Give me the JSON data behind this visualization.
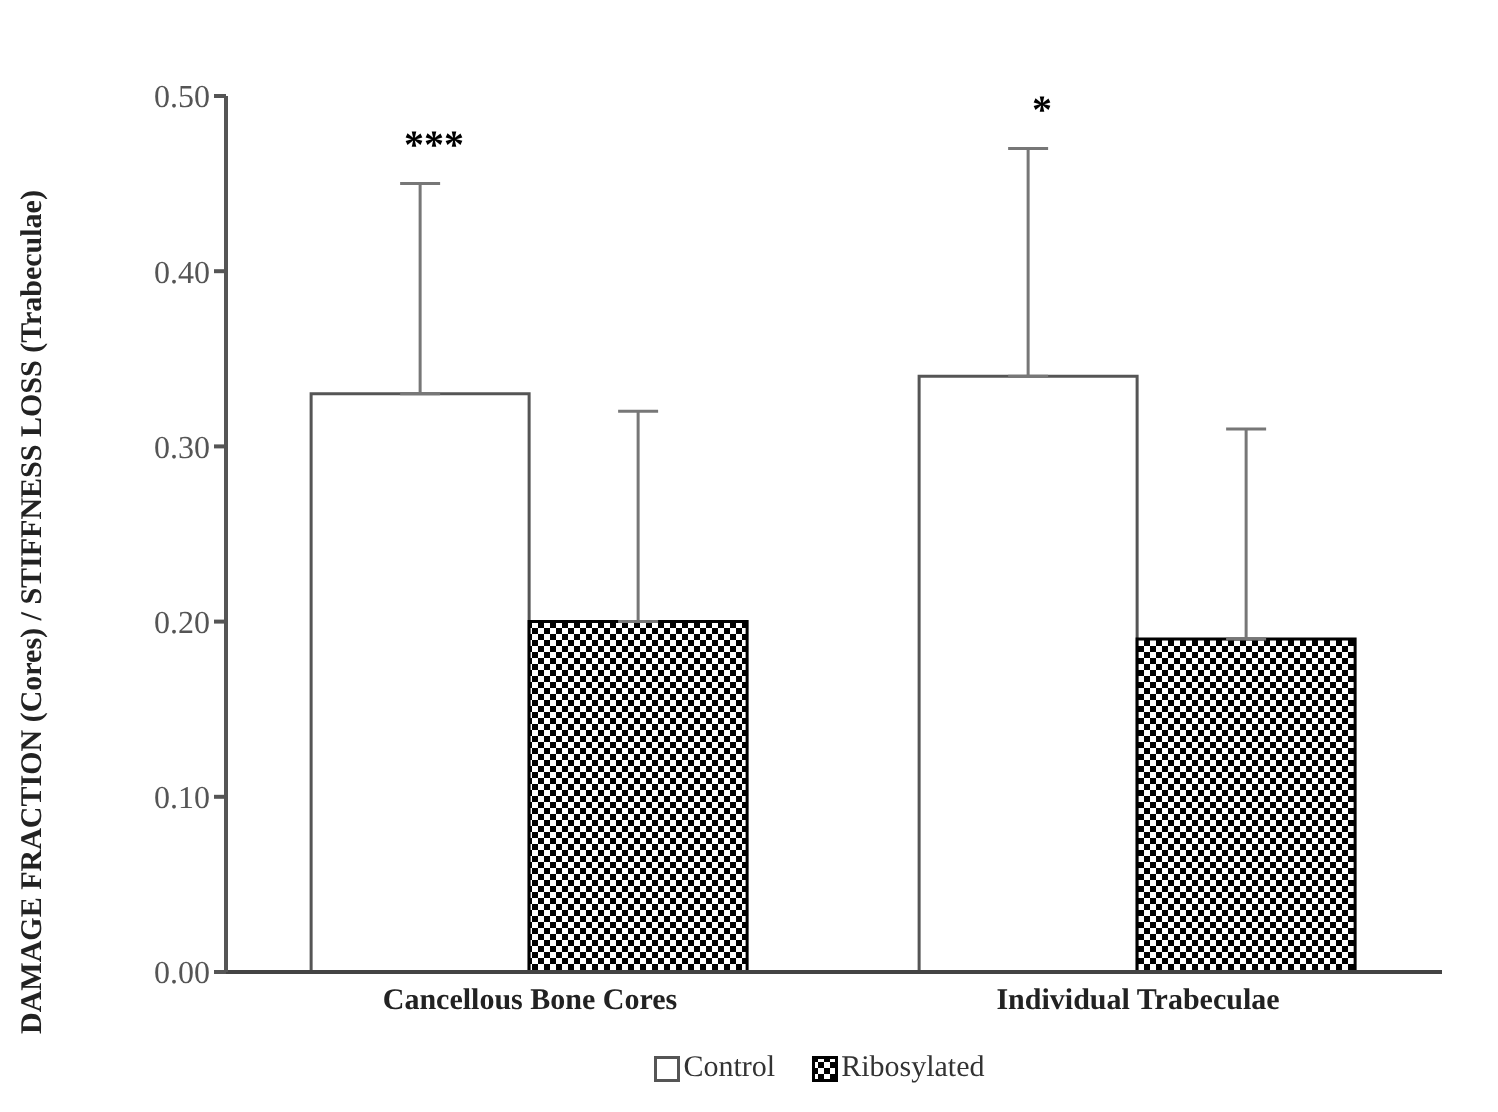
{
  "chart_data": {
    "type": "bar",
    "ylabel": "DAMAGE FRACTION (Cores) / STIFFNESS LOSS (Trabeculae)",
    "categories": [
      "Cancellous Bone Cores",
      "Individual Trabeculae"
    ],
    "series": [
      {
        "name": "Control",
        "color": "#ffffff",
        "values": [
          0.33,
          0.34
        ],
        "errors": [
          [
            0.33,
            0.45
          ],
          [
            0.34,
            0.47
          ]
        ]
      },
      {
        "name": "Ribosylated",
        "color": "#000000",
        "values": [
          0.2,
          0.19
        ],
        "errors": [
          [
            0.2,
            0.32
          ],
          [
            0.19,
            0.31
          ]
        ]
      }
    ],
    "ylim": [
      0,
      0.5
    ],
    "yticks": [
      {
        "value": 0,
        "label": "0.00"
      },
      {
        "value": 0.1,
        "label": "0.10"
      },
      {
        "value": 0.2,
        "label": "0.20"
      },
      {
        "value": 0.3,
        "label": "0.30"
      },
      {
        "value": 0.4,
        "label": "0.40"
      },
      {
        "value": 0.5,
        "label": "0.50"
      }
    ],
    "annotations": [
      "***",
      "*"
    ],
    "legend": "bottom",
    "grid": false
  }
}
